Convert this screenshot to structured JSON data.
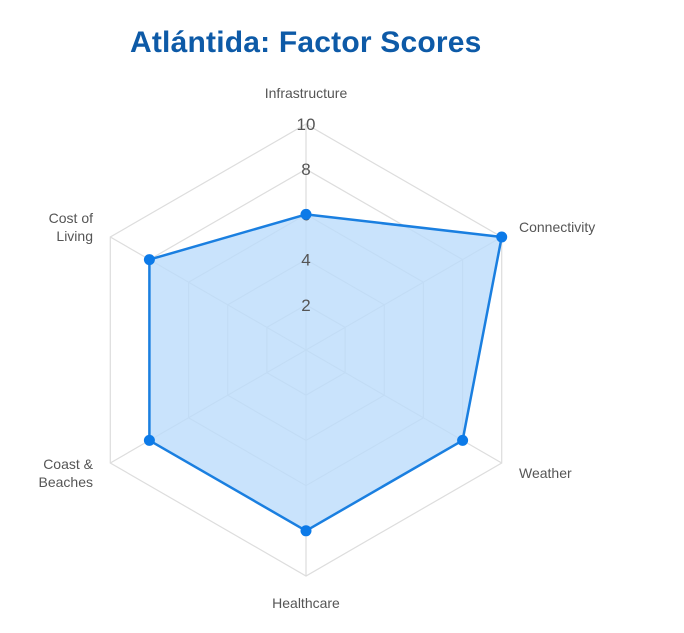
{
  "chart_data": {
    "type": "radar",
    "title": "Atlántida: Factor Scores",
    "axes": [
      "Infrastructure",
      "Connectivity",
      "Weather",
      "Healthcare",
      "Coast & Beaches",
      "Cost of Living"
    ],
    "axis_label_lines": [
      [
        "Infrastructure"
      ],
      [
        "Connectivity"
      ],
      [
        "Weather"
      ],
      [
        "Healthcare"
      ],
      [
        "Coast &",
        "Beaches"
      ],
      [
        "Cost of",
        "Living"
      ]
    ],
    "values": [
      6,
      10,
      8,
      8,
      8,
      8
    ],
    "r_ticks": [
      2,
      4,
      6,
      8,
      10
    ],
    "r_range": [
      0,
      10
    ],
    "grid": true,
    "colors": {
      "line": "#1a7fe0",
      "fill": "#bcdcfb",
      "point": "#0c7ae8",
      "grid": "#dddddd",
      "title": "#0d5aa7"
    }
  }
}
